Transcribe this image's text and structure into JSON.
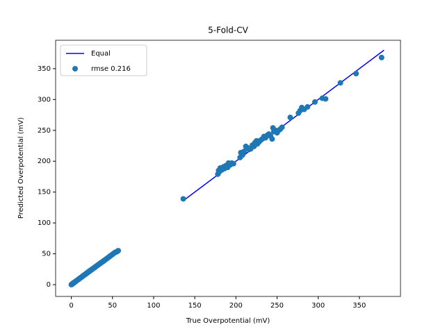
{
  "chart_data": {
    "type": "scatter",
    "title": "5-Fold-CV",
    "xlabel": "True Overpotential (mV)",
    "ylabel": "Predicted Overpotential (mV)",
    "xlim": [
      -19.1,
      400
    ],
    "ylim": [
      -19.1,
      396
    ],
    "xticks": [
      0,
      50,
      100,
      150,
      200,
      250,
      300,
      350
    ],
    "yticks": [
      0,
      50,
      100,
      150,
      200,
      250,
      300,
      350
    ],
    "legend": "upper left",
    "series": [
      {
        "name": "Equal",
        "mode": "line",
        "color": "#0000ff",
        "x": [
          136,
          380
        ],
        "y": [
          136,
          380
        ]
      },
      {
        "name": "rmse 0.216",
        "mode": "points",
        "color": "#1f77b4",
        "x": [
          0,
          0.3,
          0.8,
          1.2,
          2,
          2.5,
          3.5,
          4,
          5,
          6,
          7,
          8,
          9,
          10,
          11,
          12,
          13,
          14,
          15,
          16,
          17,
          18,
          19,
          20,
          21,
          22,
          23,
          24,
          25,
          26,
          27,
          28,
          29,
          30,
          31,
          32,
          33,
          34,
          35,
          36,
          37,
          38,
          39,
          40,
          41,
          42,
          43,
          44,
          45,
          46,
          47,
          48,
          49,
          50,
          51,
          52,
          53,
          54,
          55,
          56,
          57,
          136,
          178,
          179,
          180,
          181,
          183,
          185,
          186,
          188,
          190,
          191,
          193,
          195,
          197,
          205,
          206,
          208,
          210,
          212,
          214,
          216,
          218,
          220,
          222,
          223,
          225,
          226,
          228,
          230,
          232,
          234,
          236,
          238,
          240,
          242,
          244,
          245,
          246,
          248,
          250,
          252,
          254,
          256,
          266,
          276,
          278,
          280,
          283,
          287,
          296,
          305,
          309,
          327,
          346,
          377
        ],
        "y": [
          0,
          0.5,
          0.6,
          1.5,
          1.8,
          2.9,
          3.2,
          4.3,
          4.8,
          6.2,
          6.8,
          8.1,
          8.7,
          10.2,
          10.6,
          12.1,
          12.6,
          14.2,
          14.6,
          16.1,
          16.6,
          18.2,
          18.5,
          20.1,
          20.5,
          22.1,
          22.4,
          24.0,
          24.5,
          25.8,
          26.4,
          27.9,
          28.3,
          29.8,
          30.4,
          31.7,
          32.2,
          33.6,
          34.1,
          35.6,
          36.1,
          37.4,
          38.0,
          39.3,
          40.0,
          41.2,
          42.0,
          43.1,
          44.0,
          45.1,
          46.0,
          47.2,
          48.1,
          49.0,
          50.2,
          51.0,
          52.1,
          52.6,
          53.3,
          54.0,
          55.0,
          139,
          179,
          185,
          183,
          189,
          186,
          191,
          188,
          193,
          190,
          197,
          194,
          197,
          196,
          206,
          214,
          210,
          216,
          224,
          222,
          219,
          220,
          226,
          224,
          230,
          233,
          228,
          231,
          234,
          236,
          240,
          238,
          242,
          244,
          241,
          236,
          254,
          248,
          250,
          246,
          250,
          252,
          255,
          271,
          278,
          282,
          287,
          284,
          288,
          296,
          302,
          301,
          327,
          342,
          368
        ]
      }
    ]
  }
}
